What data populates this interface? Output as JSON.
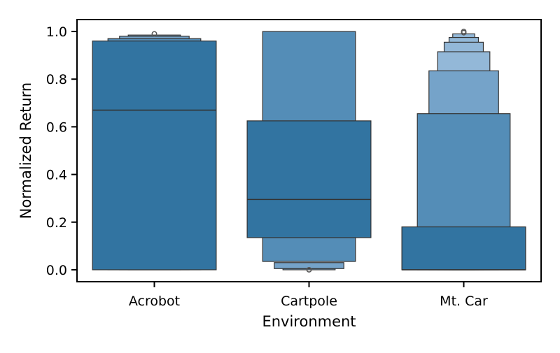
{
  "chart_data": {
    "type": "boxen",
    "xlabel": "Environment",
    "ylabel": "Normalized Return",
    "ylim": [
      -0.05,
      1.05
    ],
    "yticks": [
      "0.0",
      "0.2",
      "0.4",
      "0.6",
      "0.8",
      "1.0"
    ],
    "categories": [
      "Acrobot",
      "Cartpole",
      "Mt. Car"
    ],
    "colors": {
      "level1": "#3274a1",
      "level2": "#548db7",
      "level3": "#75a3c9",
      "level4": "#93b8d8",
      "edge": "#333333",
      "axis": "#000000"
    },
    "groups": [
      {
        "category": "Acrobot",
        "median": 0.67,
        "boxes": [
          {
            "low": 0.0,
            "high": 0.96
          },
          {
            "low": 0.0,
            "high": 0.97
          },
          {
            "low": 0.0,
            "high": 0.98
          },
          {
            "low": 0.0,
            "high": 0.985
          }
        ],
        "outliers": [
          0.99
        ]
      },
      {
        "category": "Cartpole",
        "median": 0.295,
        "boxes": [
          {
            "low": 0.135,
            "high": 0.625
          },
          {
            "low": 0.035,
            "high": 1.0
          },
          {
            "low": 0.005,
            "high": 0.03
          },
          {
            "low": 0.0,
            "high": 0.005
          }
        ],
        "outliers": [
          0.0
        ]
      },
      {
        "category": "Mt. Car",
        "median": 0.0,
        "boxes": [
          {
            "low": 0.0,
            "high": 0.18
          },
          {
            "low": 0.0,
            "high": 0.655
          },
          {
            "low": 0.0,
            "high": 0.835
          },
          {
            "low": 0.0,
            "high": 0.915
          },
          {
            "low": 0.0,
            "high": 0.955
          },
          {
            "low": 0.0,
            "high": 0.975
          },
          {
            "low": 0.0,
            "high": 0.99
          }
        ],
        "outliers": [
          0.995,
          1.0
        ]
      }
    ]
  }
}
